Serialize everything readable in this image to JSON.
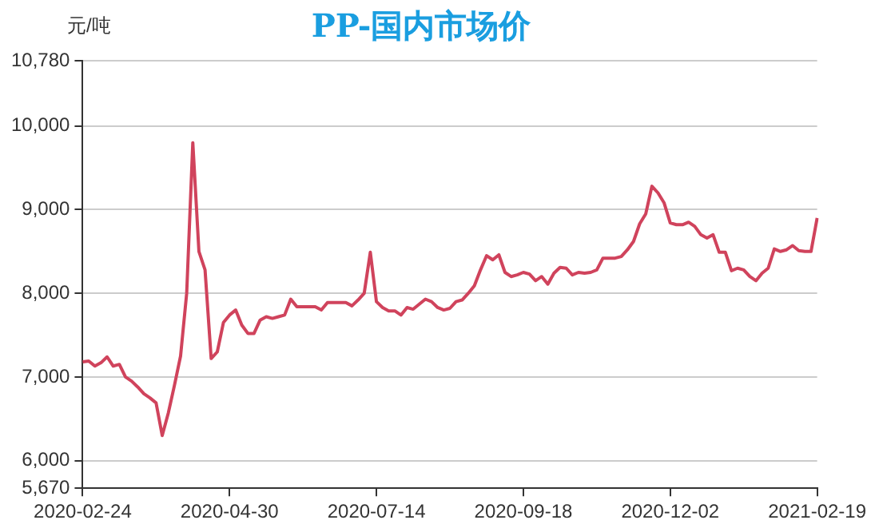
{
  "chart_data": {
    "type": "line",
    "title": "PP-国内市场价",
    "ylabel": "元/吨",
    "categories": [
      "2020-02-24",
      null,
      null,
      null,
      null,
      null,
      null,
      null,
      null,
      null,
      null,
      null,
      null,
      null,
      null,
      null,
      null,
      null,
      null,
      null,
      null,
      null,
      null,
      null,
      "2020-04-30",
      null,
      null,
      null,
      null,
      null,
      null,
      null,
      null,
      null,
      null,
      null,
      null,
      null,
      null,
      null,
      null,
      null,
      null,
      null,
      null,
      null,
      null,
      null,
      "2020-07-14",
      null,
      null,
      null,
      null,
      null,
      null,
      null,
      null,
      null,
      null,
      null,
      null,
      null,
      null,
      null,
      null,
      null,
      null,
      null,
      null,
      null,
      null,
      null,
      "2020-09-18",
      null,
      null,
      null,
      null,
      null,
      null,
      null,
      null,
      null,
      null,
      null,
      null,
      null,
      null,
      null,
      null,
      null,
      null,
      null,
      null,
      null,
      null,
      null,
      "2020-12-02",
      null,
      null,
      null,
      null,
      null,
      null,
      null,
      null,
      null,
      null,
      null,
      null,
      null,
      null,
      null,
      null,
      null,
      null,
      null,
      null,
      null,
      null,
      null,
      "2021-02-19"
    ],
    "series": [
      {
        "color": "#d0435c",
        "values": [
          7180,
          7190,
          7130,
          7170,
          7240,
          7130,
          7150,
          7000,
          6950,
          6880,
          6800,
          6750,
          6690,
          6300,
          6570,
          6900,
          7250,
          8000,
          9800,
          8500,
          8280,
          7220,
          7300,
          7650,
          7740,
          7800,
          7620,
          7520,
          7520,
          7680,
          7720,
          7700,
          7720,
          7740,
          7930,
          7840,
          7840,
          7840,
          7840,
          7800,
          7890,
          7890,
          7890,
          7890,
          7850,
          7920,
          8000,
          8490,
          7900,
          7830,
          7790,
          7790,
          7740,
          7830,
          7810,
          7870,
          7930,
          7900,
          7830,
          7800,
          7820,
          7900,
          7920,
          8000,
          8090,
          8280,
          8450,
          8400,
          8460,
          8250,
          8200,
          8220,
          8250,
          8230,
          8150,
          8200,
          8110,
          8240,
          8310,
          8300,
          8220,
          8250,
          8240,
          8250,
          8280,
          8420,
          8420,
          8420,
          8440,
          8520,
          8620,
          8830,
          8950,
          9280,
          9200,
          9080,
          8840,
          8820,
          8820,
          8850,
          8800,
          8700,
          8660,
          8700,
          8490,
          8490,
          8270,
          8300,
          8280,
          8200,
          8150,
          8240,
          8300,
          8530,
          8500,
          8520,
          8570,
          8510,
          8500,
          8500,
          8900
        ]
      }
    ],
    "ylim": [
      5670,
      10780
    ],
    "yticks": [
      {
        "value": 5670,
        "label": "5,670"
      },
      {
        "value": 6000,
        "label": "6,000"
      },
      {
        "value": 7000,
        "label": "7,000"
      },
      {
        "value": 8000,
        "label": "8,000"
      },
      {
        "value": 9000,
        "label": "9,000"
      },
      {
        "value": 10000,
        "label": "10,000"
      },
      {
        "value": 10780,
        "label": "10,780"
      }
    ],
    "grid": "y",
    "legend": false,
    "marker": "none",
    "line_style": "solid"
  }
}
